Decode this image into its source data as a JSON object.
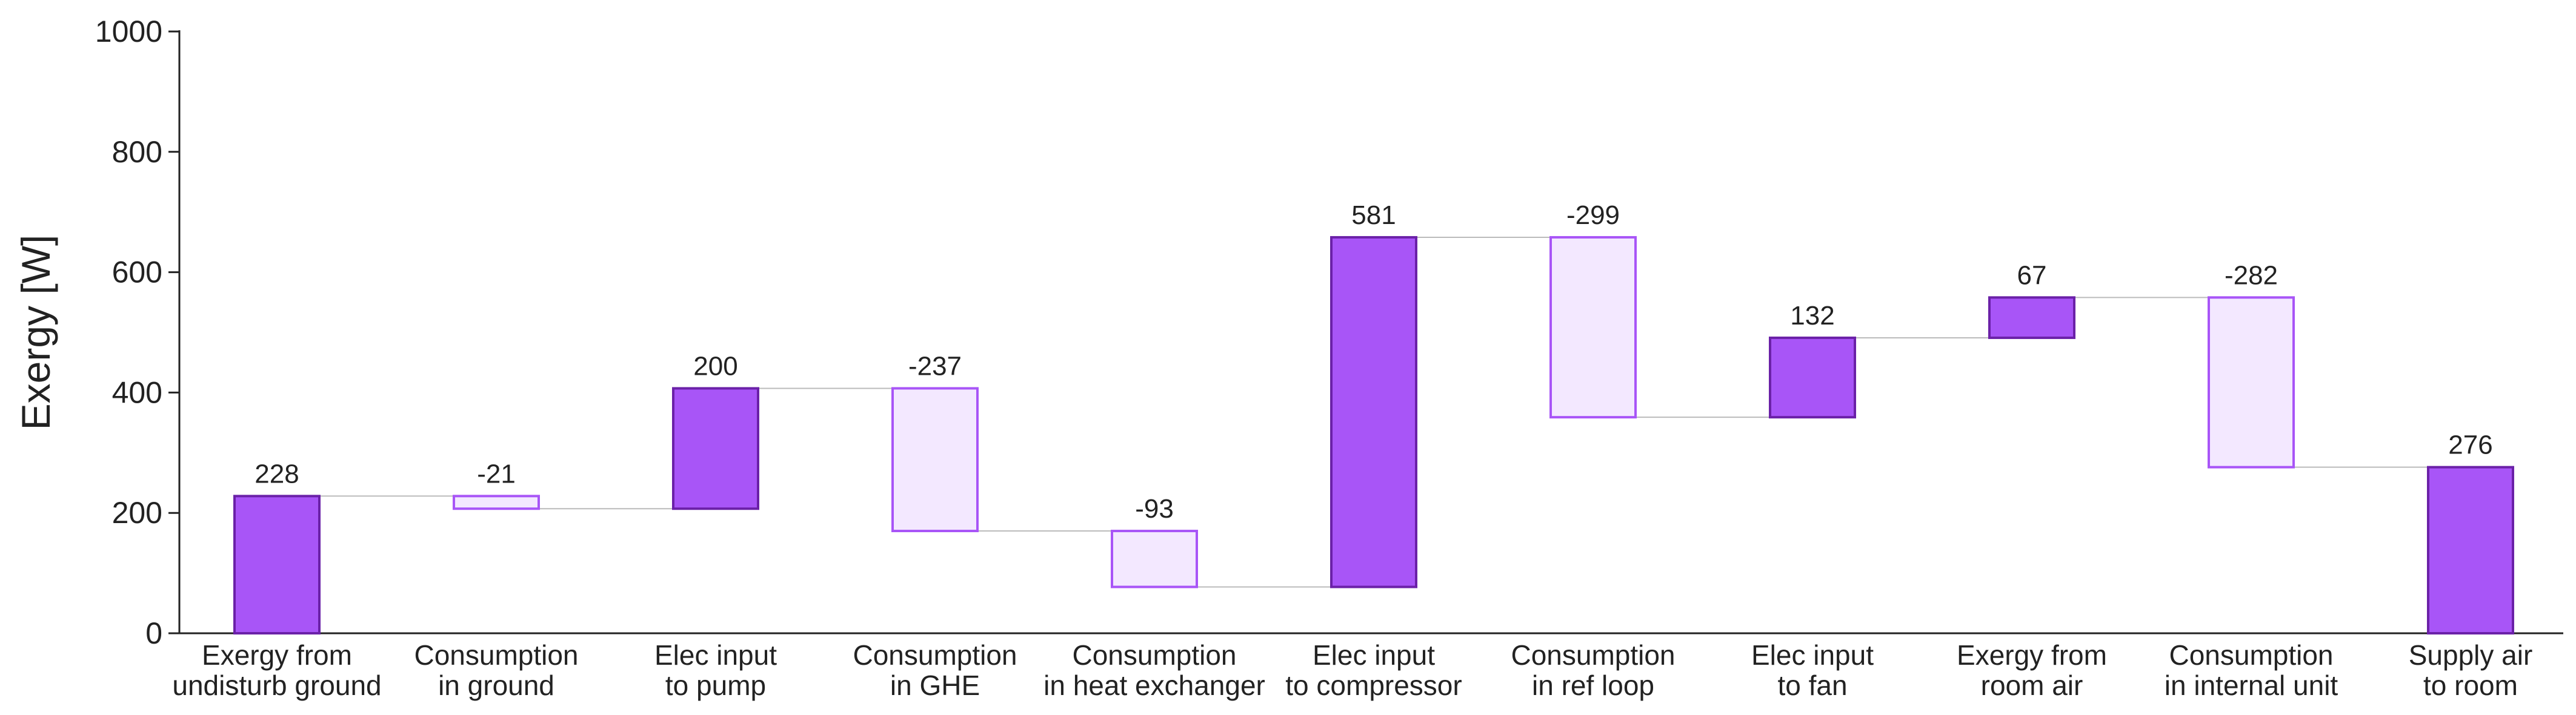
{
  "chart_data": {
    "type": "bar",
    "subtype": "waterfall",
    "title": "",
    "xlabel": "",
    "ylabel": "Exergy [W]",
    "ylim": [
      0,
      1000
    ],
    "yticks": [
      "0",
      "200",
      "400",
      "600",
      "800",
      "1000"
    ],
    "grid": false,
    "legend": "none",
    "categories": [
      [
        "Exergy from",
        "undisturb ground"
      ],
      [
        "Consumption",
        "in ground"
      ],
      [
        "Elec input",
        "to pump"
      ],
      [
        "Consumption",
        "in GHE"
      ],
      [
        "Consumption",
        "in heat exchanger"
      ],
      [
        "Elec input",
        "to compressor"
      ],
      [
        "Consumption",
        "in ref loop"
      ],
      [
        "Elec input",
        "to fan"
      ],
      [
        "Exergy from",
        "room air"
      ],
      [
        "Consumption",
        "in internal unit"
      ],
      [
        "Supply air",
        "to room"
      ]
    ],
    "values": [
      228,
      -21,
      200,
      -237,
      -93,
      581,
      -299,
      132,
      67,
      -282,
      276
    ],
    "value_labels": [
      "228",
      "-21",
      "200",
      "-237",
      "-93",
      "581",
      "-299",
      "132",
      "67",
      "-282",
      "276"
    ],
    "bar_kind": [
      "total",
      "decrease",
      "increase",
      "decrease",
      "decrease",
      "increase",
      "decrease",
      "increase",
      "increase",
      "decrease",
      "total"
    ],
    "colors": {
      "increase_fill": "#a855f7",
      "increase_stroke": "#6b21a8",
      "decrease_fill": "#f3e8ff",
      "decrease_stroke": "#a855f7",
      "connector": "#bbbbbb",
      "axis": "#222222"
    }
  }
}
